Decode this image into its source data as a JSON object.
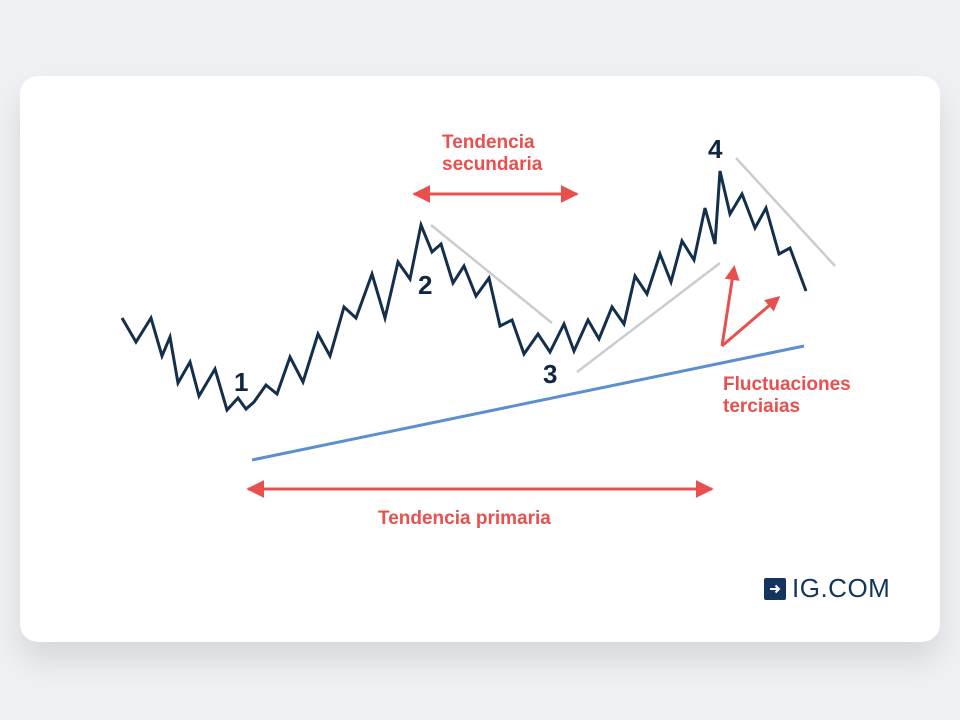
{
  "labels": {
    "secondary_trend_line1": "Tendencia",
    "secondary_trend_line2": "secundaria",
    "primary_trend": "Tendencia primaria",
    "tertiary_line1": "Fluctuaciones",
    "tertiary_line2": "terciaias"
  },
  "markers": [
    "1",
    "2",
    "3",
    "4"
  ],
  "brand": {
    "logo_text": "IG.COM",
    "logo_icon": "arrow-right-icon"
  },
  "colors": {
    "price_line": "#132f4c",
    "red_accent": "#e8504f",
    "primary_trendline": "#5b8fcf",
    "guide_lines": "#c9cdd1",
    "brand": "#15355c"
  }
}
